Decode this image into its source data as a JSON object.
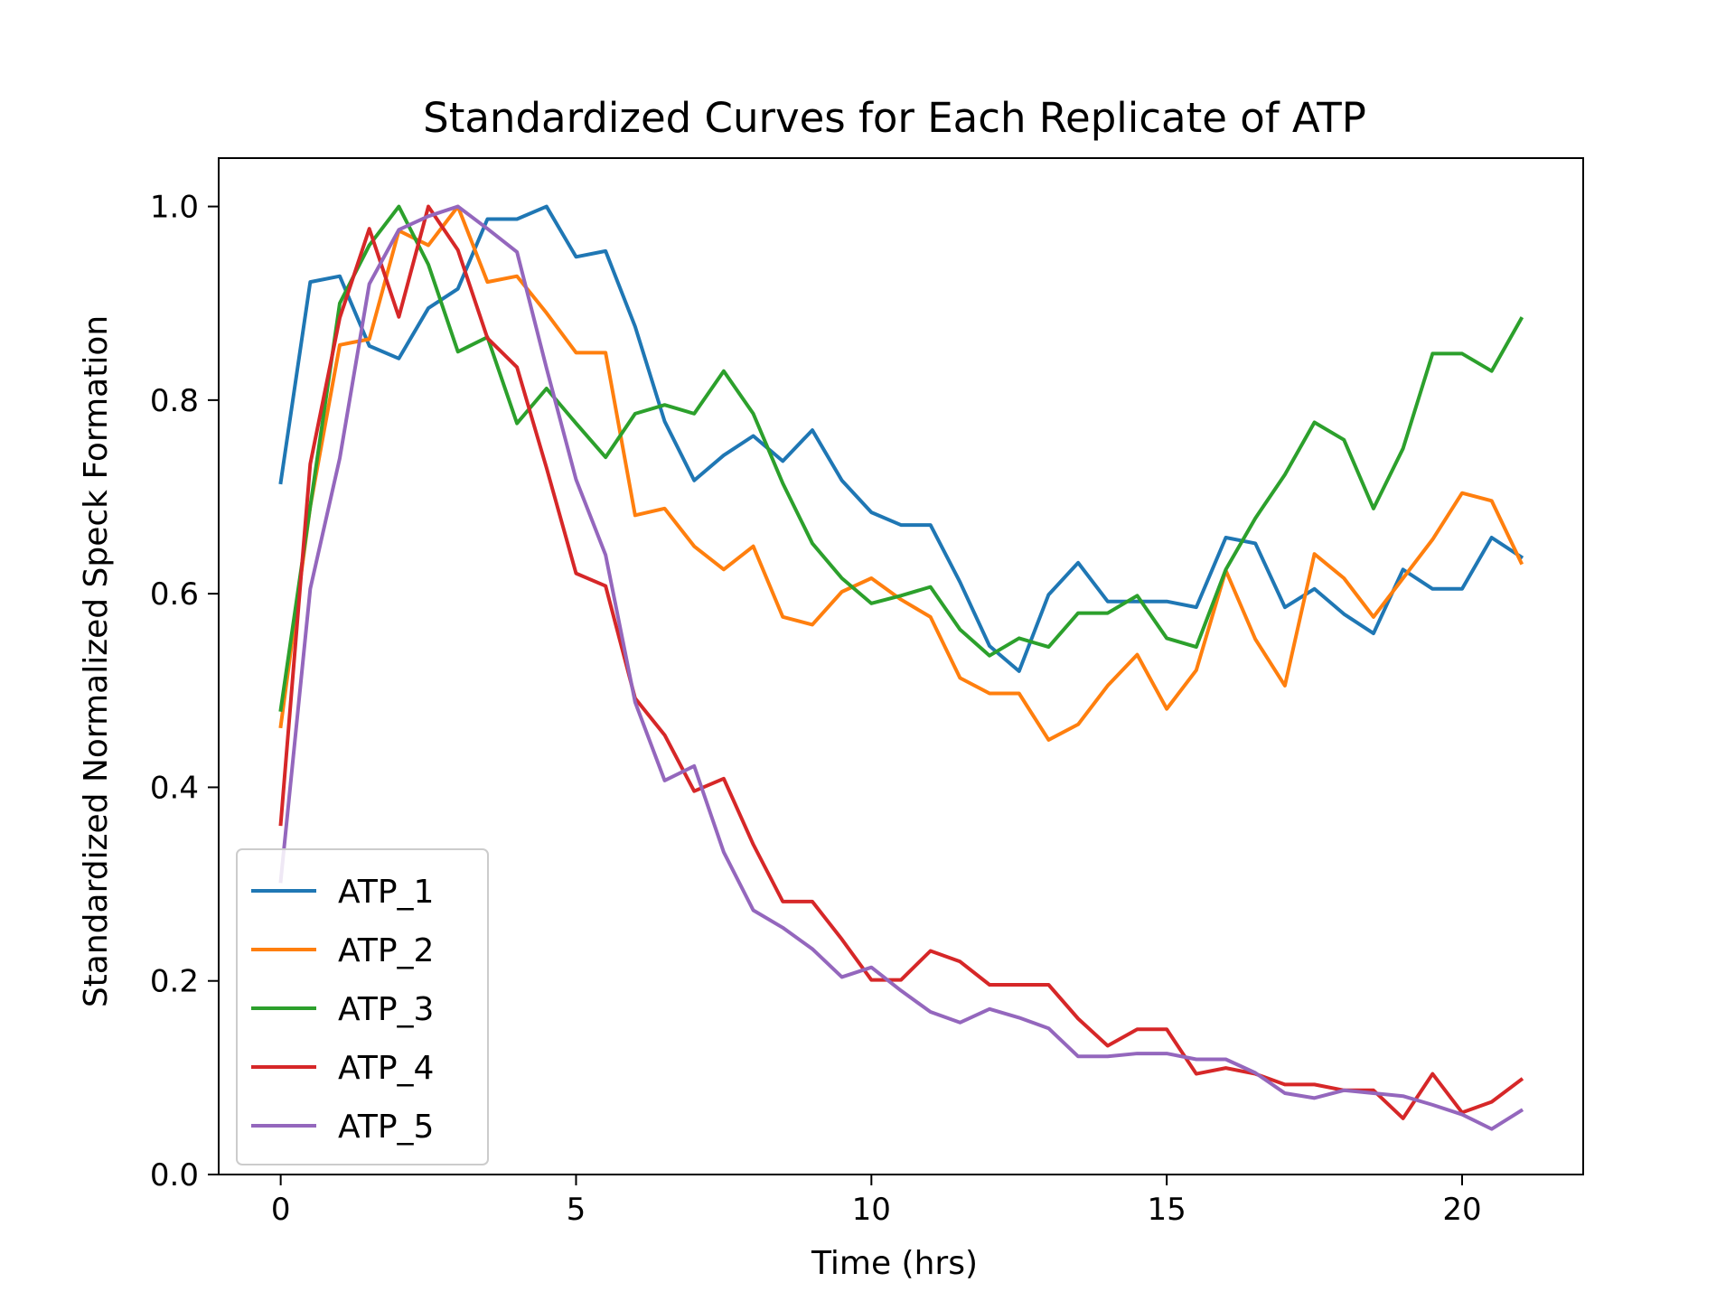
{
  "chart_data": {
    "type": "line",
    "title": "Standardized Curves for Each Replicate of ATP",
    "xlabel": "Time (hrs)",
    "ylabel": "Standardized Normalized Speck Formation",
    "xlim": [
      -1.05,
      22.05
    ],
    "ylim": [
      0.0,
      1.05
    ],
    "xticks": [
      0,
      5,
      10,
      15,
      20
    ],
    "xtick_labels": [
      "0",
      "5",
      "10",
      "15",
      "20"
    ],
    "yticks": [
      0.0,
      0.2,
      0.4,
      0.6,
      0.8,
      1.0
    ],
    "ytick_labels": [
      "0.0",
      "0.2",
      "0.4",
      "0.6",
      "0.8",
      "1.0"
    ],
    "grid": false,
    "legend_position": "lower-left",
    "x": [
      0,
      0.5,
      1,
      1.5,
      2,
      2.5,
      3,
      3.5,
      4,
      4.5,
      5,
      5.5,
      6,
      6.5,
      7,
      7.5,
      8,
      8.5,
      9,
      9.5,
      10,
      10.5,
      11,
      11.5,
      12,
      12.5,
      13,
      13.5,
      14,
      14.5,
      15,
      15.5,
      16,
      16.5,
      17,
      17.5,
      18,
      18.5,
      19,
      19.5,
      20,
      20.5,
      21
    ],
    "series": [
      {
        "name": "ATP_1",
        "color": "#1f77b4",
        "values": [
          0.715,
          0.922,
          0.928,
          0.856,
          0.843,
          0.895,
          0.915,
          0.987,
          0.987,
          1.0,
          0.948,
          0.954,
          0.876,
          0.778,
          0.717,
          0.743,
          0.763,
          0.737,
          0.769,
          0.717,
          0.684,
          0.671,
          0.671,
          0.612,
          0.546,
          0.52,
          0.599,
          0.632,
          0.592,
          0.592,
          0.592,
          0.586,
          0.658,
          0.652,
          0.586,
          0.605,
          0.579,
          0.559,
          0.625,
          0.605,
          0.605,
          0.658,
          0.638
        ]
      },
      {
        "name": "ATP_2",
        "color": "#ff7f0e",
        "values": [
          0.463,
          0.69,
          0.857,
          0.863,
          0.975,
          0.96,
          1.0,
          0.922,
          0.928,
          0.89,
          0.849,
          0.849,
          0.681,
          0.688,
          0.649,
          0.625,
          0.649,
          0.576,
          0.568,
          0.602,
          0.616,
          0.594,
          0.576,
          0.513,
          0.497,
          0.497,
          0.449,
          0.465,
          0.505,
          0.537,
          0.481,
          0.521,
          0.624,
          0.553,
          0.505,
          0.641,
          0.616,
          0.576,
          0.616,
          0.656,
          0.704,
          0.696,
          0.632
        ]
      },
      {
        "name": "ATP_3",
        "color": "#2ca02c",
        "values": [
          0.48,
          0.69,
          0.9,
          0.96,
          1.0,
          0.94,
          0.85,
          0.865,
          0.776,
          0.812,
          0.776,
          0.741,
          0.786,
          0.795,
          0.786,
          0.83,
          0.786,
          0.714,
          0.652,
          0.616,
          0.59,
          0.598,
          0.607,
          0.563,
          0.536,
          0.554,
          0.545,
          0.58,
          0.58,
          0.598,
          0.554,
          0.545,
          0.625,
          0.678,
          0.723,
          0.777,
          0.759,
          0.688,
          0.75,
          0.848,
          0.848,
          0.83,
          0.884
        ]
      },
      {
        "name": "ATP_4",
        "color": "#d62728",
        "values": [
          0.362,
          0.734,
          0.885,
          0.977,
          0.886,
          1.0,
          0.955,
          0.864,
          0.834,
          0.73,
          0.621,
          0.608,
          0.492,
          0.454,
          0.396,
          0.409,
          0.341,
          0.282,
          0.282,
          0.243,
          0.201,
          0.201,
          0.231,
          0.22,
          0.196,
          0.196,
          0.196,
          0.161,
          0.133,
          0.15,
          0.15,
          0.104,
          0.11,
          0.104,
          0.093,
          0.093,
          0.087,
          0.087,
          0.058,
          0.104,
          0.064,
          0.075,
          0.098
        ]
      },
      {
        "name": "ATP_5",
        "color": "#9467bd",
        "values": [
          0.303,
          0.605,
          0.74,
          0.92,
          0.976,
          0.99,
          1.0,
          0.977,
          0.953,
          0.833,
          0.718,
          0.64,
          0.488,
          0.407,
          0.422,
          0.333,
          0.273,
          0.255,
          0.233,
          0.204,
          0.214,
          0.19,
          0.168,
          0.157,
          0.171,
          0.162,
          0.151,
          0.122,
          0.122,
          0.125,
          0.125,
          0.119,
          0.119,
          0.105,
          0.084,
          0.079,
          0.087,
          0.084,
          0.081,
          0.072,
          0.062,
          0.047,
          0.066
        ]
      }
    ]
  }
}
